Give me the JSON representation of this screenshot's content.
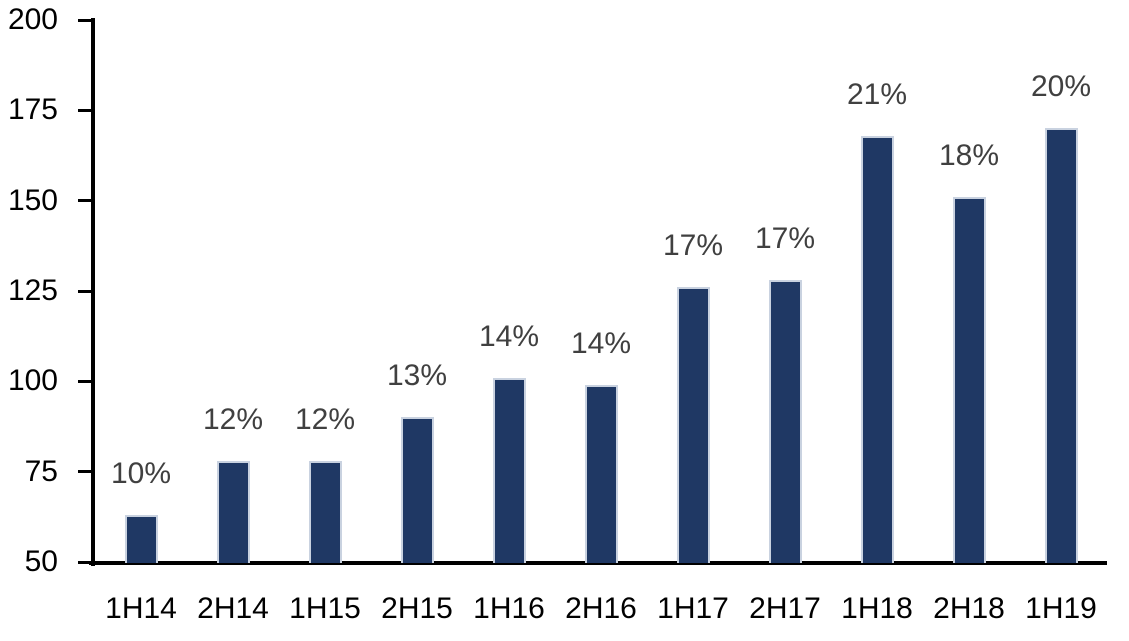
{
  "chart_data": {
    "type": "bar",
    "title": "",
    "xlabel": "",
    "ylabel": "",
    "categories": [
      "1H14",
      "2H14",
      "1H15",
      "2H15",
      "1H16",
      "2H16",
      "1H17",
      "2H17",
      "1H18",
      "2H18",
      "1H19"
    ],
    "values": [
      63,
      78,
      78,
      90,
      101,
      99,
      126,
      128,
      168,
      151,
      170
    ],
    "bar_labels": [
      "10%",
      "12%",
      "12%",
      "13%",
      "14%",
      "14%",
      "17%",
      "17%",
      "21%",
      "18%",
      "20%"
    ],
    "ylim": [
      50,
      200
    ],
    "yticks": [
      50,
      75,
      100,
      125,
      150,
      175,
      200
    ],
    "grid": false,
    "legend": "none",
    "colors": {
      "bar_fill": "#1f3864",
      "bar_border": "#c9d2e0",
      "data_label": "#404040",
      "axis": "#000000",
      "tick_label": "#000000",
      "background": "#ffffff"
    }
  }
}
